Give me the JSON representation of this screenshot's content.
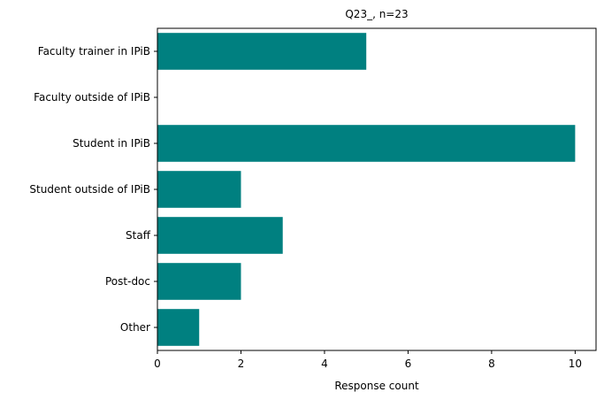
{
  "chart_data": {
    "type": "bar",
    "orientation": "horizontal",
    "title": "Q23_, n=23",
    "xlabel": "Response count",
    "ylabel": "",
    "categories": [
      "Faculty trainer in IPiB",
      "Faculty outside of IPiB",
      "Student in IPiB",
      "Student outside of IPiB",
      "Staff",
      "Post-doc",
      "Other"
    ],
    "values": [
      5,
      0,
      10,
      2,
      3,
      2,
      1
    ],
    "xlim": [
      0,
      10.5
    ],
    "xticks": [
      0,
      2,
      4,
      6,
      8,
      10
    ],
    "grid": false,
    "bar_color": "#008080"
  }
}
